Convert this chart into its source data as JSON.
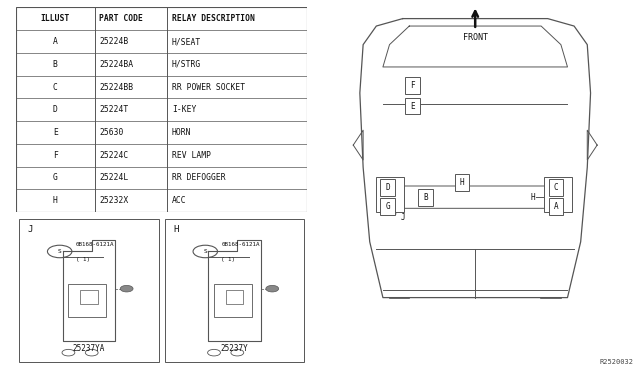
{
  "table_headers": [
    "ILLUST",
    "PART CODE",
    "RELAY DESCRIPTION"
  ],
  "table_rows": [
    [
      "A",
      "25224B",
      "H/SEAT"
    ],
    [
      "B",
      "25224BA",
      "H/STRG"
    ],
    [
      "C",
      "25224BB",
      "RR POWER SOCKET"
    ],
    [
      "D",
      "25224T",
      "I-KEY"
    ],
    [
      "E",
      "25630",
      "HORN"
    ],
    [
      "F",
      "25224C",
      "REV LAMP"
    ],
    [
      "G",
      "25224L",
      "RR DEFOGGER"
    ],
    [
      "H",
      "25232X",
      "ACC"
    ]
  ],
  "diagram_ref": "R2520032",
  "bracket_parts": [
    {
      "label": "J",
      "part_num": "25237YA",
      "screw": "0B168-6121A"
    },
    {
      "label": "H",
      "part_num": "25237Y",
      "screw": "0B168-6121A"
    }
  ]
}
